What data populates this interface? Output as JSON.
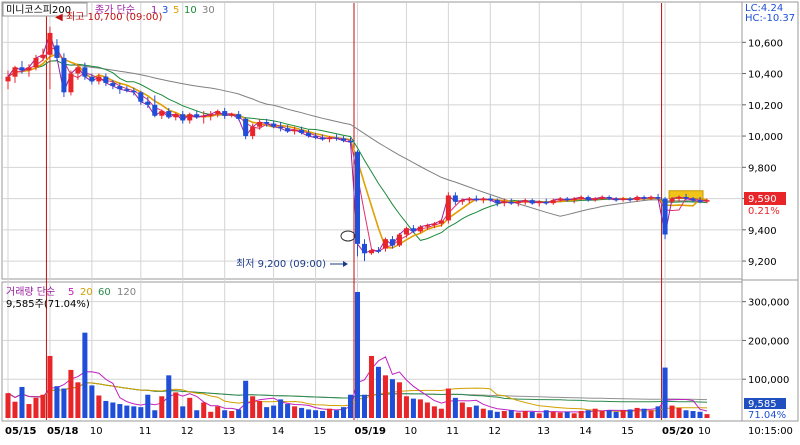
{
  "colors": {
    "up": "#e8262a",
    "down": "#1f4fd8",
    "ma1": "#9b1fa0",
    "ma3": "#e03070",
    "ma5": "#e0a000",
    "ma10": "#1a8a3a",
    "ma30": "#808080",
    "vma5": "#c020c0",
    "vma20": "#d0a000",
    "vma60": "#2a8a4a",
    "vma120": "#909090",
    "marker": "#c01010",
    "grid": "#d4d4d4",
    "box": "#f0c419",
    "label_bg": "#2050c0"
  },
  "price_panel": {
    "title": "미니코스피200",
    "legend_label": "종가 단순",
    "ma_periods": [
      "1",
      "3",
      "5",
      "10",
      "30"
    ],
    "high_note": "최고 10,700 (09:00)",
    "low_note": "최저 9,200 (09:00)",
    "lc_label": "LC:4.24",
    "hc_label": "HC:-10.37",
    "current_price": "9,590",
    "current_pct": "0.21%"
  },
  "volume_panel": {
    "legend_label": "거래량 단순",
    "ma_periods": [
      "5",
      "20",
      "60",
      "120"
    ],
    "sub_label": "9,585주(71.04%)",
    "current_volume": "9,585",
    "current_pct": "71.04%"
  },
  "time_label": "10:15:00",
  "chart_data": [
    {
      "type": "candlestick",
      "title": "미니코스피200",
      "yticks": [
        "10,600",
        "10,400",
        "10,200",
        "10,000",
        "9,800",
        "9,600",
        "9,400",
        "9,200"
      ],
      "ytick_values": [
        10600,
        10400,
        10200,
        10000,
        9800,
        9600,
        9400,
        9200
      ],
      "ylim": [
        9130,
        10730
      ],
      "xticks": [
        {
          "i": 0,
          "label": "05/15",
          "bold": true
        },
        {
          "i": 6,
          "label": "05/18",
          "bold": true
        },
        {
          "i": 12,
          "label": "10"
        },
        {
          "i": 19,
          "label": "11"
        },
        {
          "i": 25,
          "label": "12"
        },
        {
          "i": 31,
          "label": "13"
        },
        {
          "i": 38,
          "label": "14"
        },
        {
          "i": 44,
          "label": "15"
        },
        {
          "i": 50,
          "label": "05/19",
          "bold": true
        },
        {
          "i": 57,
          "label": "10"
        },
        {
          "i": 63,
          "label": "11"
        },
        {
          "i": 69,
          "label": "12"
        },
        {
          "i": 76,
          "label": "13"
        },
        {
          "i": 82,
          "label": "14"
        },
        {
          "i": 88,
          "label": "15"
        },
        {
          "i": 94,
          "label": "05/20",
          "bold": true
        },
        {
          "i": 99,
          "label": "10"
        }
      ],
      "session_starts": [
        6,
        50,
        94
      ],
      "candles": [
        [
          10350,
          10420,
          10300,
          10380
        ],
        [
          10380,
          10450,
          10340,
          10440
        ],
        [
          10440,
          10480,
          10400,
          10420
        ],
        [
          10420,
          10460,
          10380,
          10440
        ],
        [
          10440,
          10520,
          10420,
          10500
        ],
        [
          10500,
          10560,
          10480,
          10520
        ],
        [
          10520,
          10700,
          10300,
          10660
        ],
        [
          10580,
          10620,
          10480,
          10500
        ],
        [
          10500,
          10530,
          10250,
          10280
        ],
        [
          10280,
          10420,
          10260,
          10400
        ],
        [
          10400,
          10460,
          10360,
          10440
        ],
        [
          10440,
          10470,
          10360,
          10380
        ],
        [
          10380,
          10400,
          10330,
          10350
        ],
        [
          10350,
          10400,
          10330,
          10380
        ],
        [
          10380,
          10400,
          10320,
          10340
        ],
        [
          10340,
          10360,
          10300,
          10320
        ],
        [
          10320,
          10340,
          10270,
          10300
        ],
        [
          10300,
          10320,
          10280,
          10290
        ],
        [
          10290,
          10310,
          10260,
          10280
        ],
        [
          10280,
          10290,
          10200,
          10220
        ],
        [
          10220,
          10250,
          10180,
          10200
        ],
        [
          10200,
          10260,
          10120,
          10130
        ],
        [
          10130,
          10170,
          10110,
          10160
        ],
        [
          10160,
          10180,
          10110,
          10120
        ],
        [
          10120,
          10150,
          10100,
          10140
        ],
        [
          10140,
          10160,
          10080,
          10100
        ],
        [
          10100,
          10150,
          10080,
          10140
        ],
        [
          10140,
          10160,
          10110,
          10120
        ],
        [
          10120,
          10160,
          10080,
          10130
        ],
        [
          10130,
          10160,
          10100,
          10140
        ],
        [
          10140,
          10170,
          10120,
          10160
        ],
        [
          10160,
          10180,
          10110,
          10130
        ],
        [
          10130,
          10150,
          10120,
          10140
        ],
        [
          10140,
          10160,
          10100,
          10110
        ],
        [
          10110,
          10120,
          9980,
          10000
        ],
        [
          10000,
          10080,
          9980,
          10060
        ],
        [
          10060,
          10110,
          10040,
          10090
        ],
        [
          10090,
          10110,
          10060,
          10080
        ],
        [
          10080,
          10100,
          10050,
          10060
        ],
        [
          10060,
          10090,
          10030,
          10050
        ],
        [
          10050,
          10070,
          10020,
          10030
        ],
        [
          10030,
          10060,
          10010,
          10040
        ],
        [
          10040,
          10060,
          10010,
          10020
        ],
        [
          10020,
          10040,
          9990,
          10000
        ],
        [
          10000,
          10020,
          9980,
          9990
        ],
        [
          9990,
          10010,
          9970,
          9980
        ],
        [
          9980,
          10000,
          9960,
          9990
        ],
        [
          9990,
          10010,
          9970,
          9985
        ],
        [
          9985,
          10000,
          9960,
          9970
        ],
        [
          9970,
          9990,
          9940,
          9960
        ],
        [
          9900,
          9910,
          9230,
          9310
        ],
        [
          9310,
          9340,
          9200,
          9250
        ],
        [
          9250,
          9280,
          9240,
          9270
        ],
        [
          9270,
          9290,
          9250,
          9260
        ],
        [
          9280,
          9350,
          9260,
          9340
        ],
        [
          9340,
          9360,
          9280,
          9300
        ],
        [
          9300,
          9380,
          9290,
          9370
        ],
        [
          9370,
          9420,
          9350,
          9410
        ],
        [
          9410,
          9430,
          9380,
          9390
        ],
        [
          9390,
          9430,
          9380,
          9420
        ],
        [
          9420,
          9440,
          9400,
          9430
        ],
        [
          9430,
          9450,
          9410,
          9440
        ],
        [
          9440,
          9470,
          9420,
          9460
        ],
        [
          9460,
          9640,
          9440,
          9620
        ],
        [
          9620,
          9640,
          9560,
          9580
        ],
        [
          9580,
          9600,
          9560,
          9590
        ],
        [
          9590,
          9610,
          9570,
          9600
        ],
        [
          9600,
          9620,
          9580,
          9590
        ],
        [
          9590,
          9610,
          9570,
          9600
        ],
        [
          9600,
          9620,
          9580,
          9590
        ],
        [
          9590,
          9600,
          9550,
          9570
        ],
        [
          9570,
          9600,
          9550,
          9580
        ],
        [
          9580,
          9600,
          9560,
          9570
        ],
        [
          9570,
          9590,
          9550,
          9580
        ],
        [
          9580,
          9600,
          9560,
          9590
        ],
        [
          9590,
          9600,
          9560,
          9570
        ],
        [
          9570,
          9590,
          9550,
          9580
        ],
        [
          9580,
          9600,
          9560,
          9570
        ],
        [
          9570,
          9600,
          9560,
          9590
        ],
        [
          9590,
          9610,
          9580,
          9600
        ],
        [
          9600,
          9610,
          9580,
          9590
        ],
        [
          9590,
          9610,
          9570,
          9600
        ],
        [
          9600,
          9620,
          9590,
          9610
        ],
        [
          9610,
          9620,
          9580,
          9590
        ],
        [
          9590,
          9610,
          9580,
          9600
        ],
        [
          9600,
          9620,
          9590,
          9610
        ],
        [
          9610,
          9620,
          9590,
          9600
        ],
        [
          9600,
          9610,
          9580,
          9590
        ],
        [
          9590,
          9610,
          9580,
          9600
        ],
        [
          9600,
          9610,
          9580,
          9590
        ],
        [
          9590,
          9620,
          9580,
          9610
        ],
        [
          9610,
          9620,
          9590,
          9600
        ],
        [
          9600,
          9620,
          9590,
          9610
        ],
        [
          9610,
          9630,
          9590,
          9600
        ],
        [
          9600,
          9610,
          9340,
          9370
        ],
        [
          9580,
          9610,
          9570,
          9600
        ],
        [
          9600,
          9620,
          9580,
          9610
        ],
        [
          9610,
          9630,
          9590,
          9600
        ],
        [
          9600,
          9610,
          9580,
          9590
        ],
        [
          9590,
          9610,
          9570,
          9580
        ],
        [
          9580,
          9600,
          9570,
          9590
        ]
      ],
      "consolidation_box": {
        "i_start": 95,
        "i_end": 99,
        "low": 9600,
        "high": 9650
      }
    },
    {
      "type": "bar",
      "title": "거래량",
      "yticks": [
        "300,000",
        "200,000",
        "100,000"
      ],
      "ytick_values": [
        300000,
        200000,
        100000
      ],
      "ylim": [
        0,
        330000
      ],
      "volumes": [
        64000,
        42000,
        80000,
        36000,
        52000,
        60000,
        160000,
        82000,
        76000,
        124000,
        92000,
        220000,
        84000,
        58000,
        44000,
        40000,
        36000,
        32000,
        30000,
        28000,
        60000,
        20000,
        56000,
        110000,
        66000,
        30000,
        52000,
        20000,
        40000,
        16000,
        30000,
        20000,
        18000,
        22000,
        96000,
        56000,
        44000,
        28000,
        32000,
        48000,
        36000,
        30000,
        26000,
        22000,
        20000,
        18000,
        24000,
        20000,
        28000,
        60000,
        325000,
        60000,
        160000,
        132000,
        110000,
        100000,
        92000,
        56000,
        50000,
        48000,
        40000,
        30000,
        24000,
        76000,
        52000,
        40000,
        28000,
        32000,
        24000,
        20000,
        16000,
        18000,
        20000,
        14000,
        18000,
        16000,
        12000,
        20000,
        16000,
        14000,
        16000,
        12000,
        18000,
        20000,
        24000,
        18000,
        20000,
        16000,
        20000,
        22000,
        26000,
        24000,
        20000,
        30000,
        130000,
        32000,
        26000,
        20000,
        18000,
        16000,
        10000
      ]
    }
  ]
}
